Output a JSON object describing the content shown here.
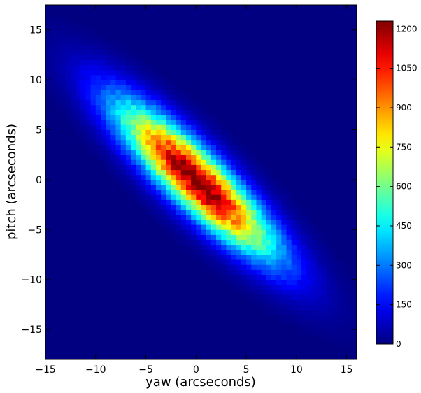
{
  "chart_data": {
    "type": "heatmap",
    "title": "",
    "xlabel": "yaw (arcseconds)",
    "ylabel": "pitch (arcseconds)",
    "xlim": [
      -15,
      16
    ],
    "ylim": [
      -18,
      17.5
    ],
    "x_ticks": [
      -15,
      -10,
      -5,
      0,
      5,
      10,
      15
    ],
    "y_ticks": [
      -15,
      -10,
      -5,
      0,
      5,
      10,
      15
    ],
    "x_tick_labels": [
      "−15",
      "−10",
      "−5",
      "0",
      "5",
      "10",
      "15"
    ],
    "y_tick_labels": [
      "−15",
      "−10",
      "−5",
      "0",
      "5",
      "10",
      "15"
    ],
    "colormap": "jet",
    "grid": false,
    "bin_size": 0.5,
    "colorbar": {
      "min": 0,
      "max": 1230,
      "ticks": [
        0,
        150,
        300,
        450,
        600,
        750,
        900,
        1050,
        1200
      ],
      "tick_labels": [
        "0",
        "150",
        "300",
        "450",
        "600",
        "750",
        "900",
        "1050",
        "1200"
      ]
    },
    "distribution": {
      "center": [
        0.0,
        0.0
      ],
      "peak": 1230,
      "sigma_major": 7.2,
      "sigma_minor": 1.85,
      "major_axis_angle_deg": -44
    }
  }
}
